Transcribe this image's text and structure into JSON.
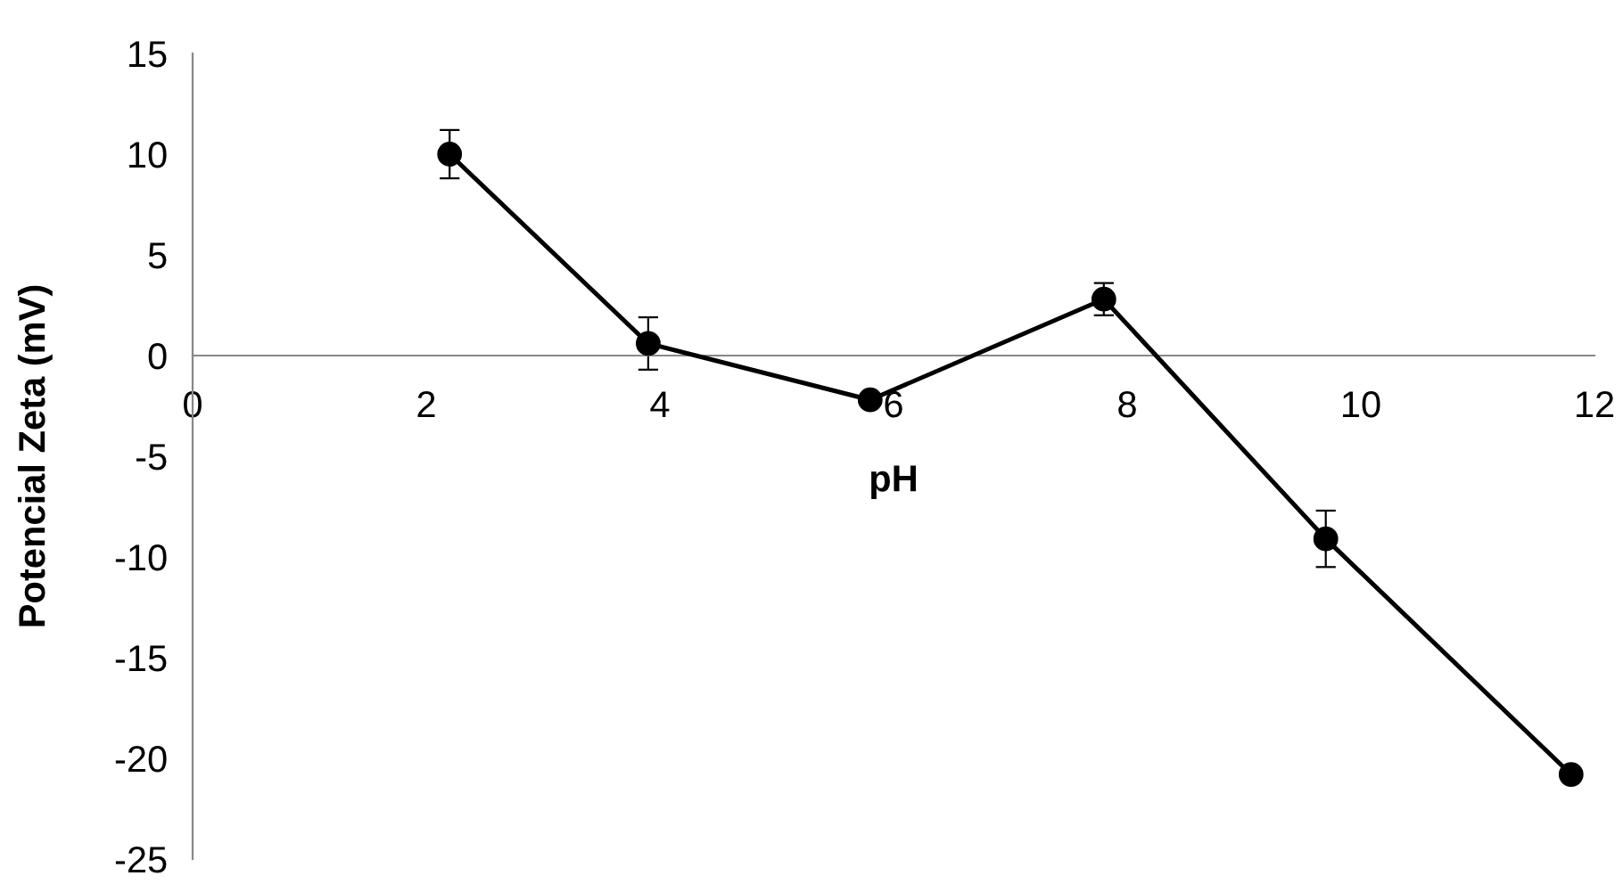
{
  "chart_data": {
    "type": "line",
    "xlabel": "pH",
    "ylabel": "Potencial Zeta (mV)",
    "x": [
      2.2,
      3.9,
      5.8,
      7.8,
      9.7,
      11.8
    ],
    "series": [
      {
        "color": "#000000",
        "values": [
          10.0,
          0.6,
          -2.2,
          2.8,
          -9.1,
          -20.8
        ],
        "errors": [
          1.2,
          1.3,
          null,
          0.8,
          1.4,
          null
        ]
      }
    ],
    "xlim": [
      0,
      12
    ],
    "xticks": [
      0,
      2,
      4,
      6,
      8,
      10,
      12
    ],
    "ylim": [
      -25,
      15
    ],
    "yticks": [
      -25,
      -20,
      -15,
      -10,
      -5,
      0,
      5,
      10,
      15
    ],
    "grid": false,
    "legend": false,
    "marker": "circle",
    "line_style": "solid"
  }
}
